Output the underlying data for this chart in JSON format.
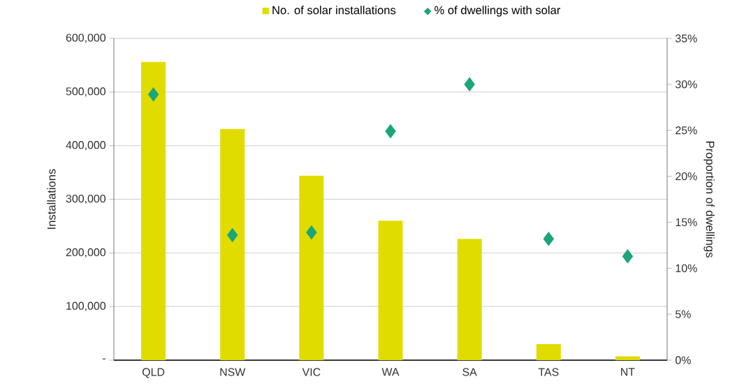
{
  "chart_data": {
    "type": "bar",
    "ylabel": "Installations",
    "y2label": "Proportion of dwellings",
    "categories": [
      "QLD",
      "NSW",
      "VIC",
      "WA",
      "SA",
      "TAS",
      "NT"
    ],
    "series": [
      {
        "name": "No. of solar installations",
        "color": "#e0dc00",
        "values": [
          556000,
          431000,
          344000,
          260000,
          226000,
          30000,
          7000
        ]
      },
      {
        "name": "% of dwellings with solar",
        "type": "scatter",
        "axis": "y2",
        "color": "#1aa57a",
        "x": [
          "QLD",
          "NSW",
          "VIC",
          "WA",
          "SA",
          "TAS",
          "NT"
        ],
        "values": [
          28.9,
          13.6,
          13.9,
          24.9,
          30.0,
          13.2,
          11.3
        ]
      }
    ],
    "ylim": [
      0,
      600000
    ],
    "yticks": [
      {
        "value": 0,
        "label": "-"
      },
      {
        "value": 100000,
        "label": "100,000"
      },
      {
        "value": 200000,
        "label": "200,000"
      },
      {
        "value": 300000,
        "label": "300,000"
      },
      {
        "value": 400000,
        "label": "400,000"
      },
      {
        "value": 500000,
        "label": "500,000"
      },
      {
        "value": 600000,
        "label": "600,000"
      }
    ],
    "y2lim": [
      0,
      35
    ],
    "y2ticks": [
      {
        "value": 0,
        "label": "0%"
      },
      {
        "value": 5,
        "label": "5%"
      },
      {
        "value": 10,
        "label": "10%"
      },
      {
        "value": 15,
        "label": "15%"
      },
      {
        "value": 20,
        "label": "20%"
      },
      {
        "value": 25,
        "label": "25%"
      },
      {
        "value": 30,
        "label": "30%"
      },
      {
        "value": 35,
        "label": "35%"
      }
    ],
    "grid": "y",
    "legend": "top",
    "marker": "diamond"
  }
}
